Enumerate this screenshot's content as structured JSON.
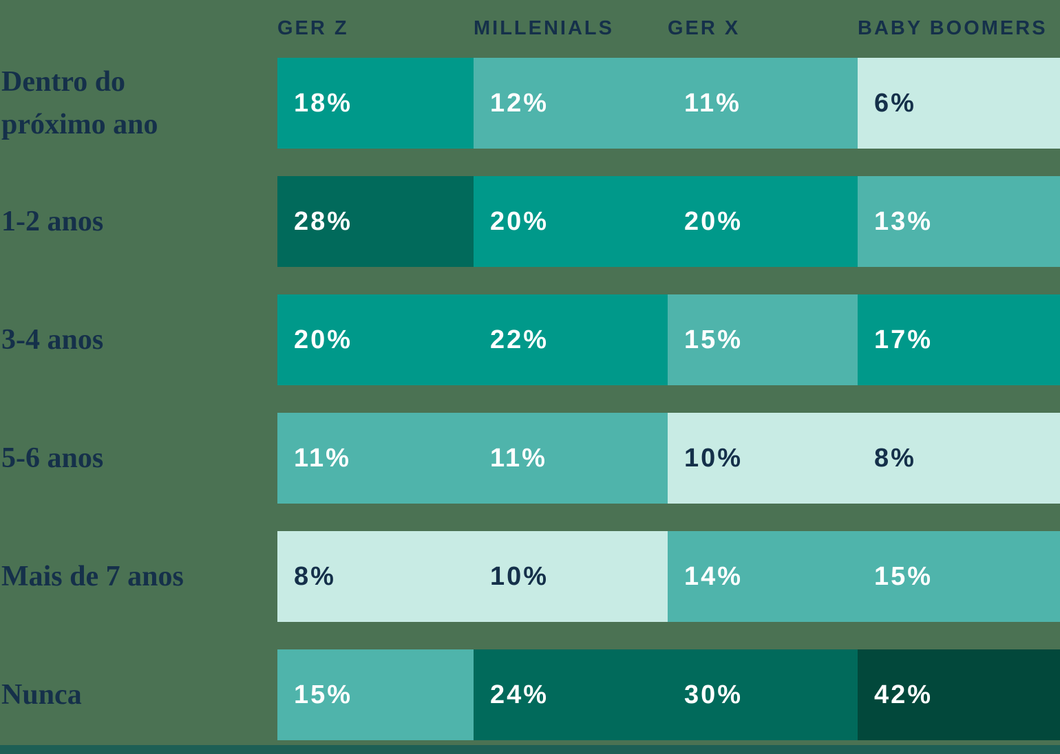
{
  "chart_data": {
    "type": "heatmap",
    "title": "",
    "unit": "%",
    "columns": [
      "GER Z",
      "MILLENIALS",
      "GER X",
      "BABY BOOMERS"
    ],
    "rows": [
      "Dentro do próximo ano",
      "1-2 anos",
      "3-4 anos",
      "5-6 anos",
      "Mais de 7 anos",
      "Nunca"
    ],
    "label_lines": [
      [
        "Dentro do",
        "próximo ano"
      ],
      [
        "1-2 anos"
      ],
      [
        "3-4 anos"
      ],
      [
        "5-6 anos"
      ],
      [
        "Mais de 7 anos"
      ],
      [
        "Nunca"
      ]
    ],
    "values": [
      [
        18,
        12,
        11,
        6
      ],
      [
        28,
        20,
        20,
        13
      ],
      [
        20,
        22,
        15,
        17
      ],
      [
        11,
        11,
        10,
        8
      ],
      [
        8,
        10,
        14,
        15
      ],
      [
        15,
        24,
        30,
        42
      ]
    ],
    "value_labels": [
      [
        "18%",
        "12%",
        "11%",
        "6%"
      ],
      [
        "28%",
        "20%",
        "20%",
        "13%"
      ],
      [
        "20%",
        "22%",
        "15%",
        "17%"
      ],
      [
        "11%",
        "11%",
        "10%",
        "8%"
      ],
      [
        "8%",
        "10%",
        "14%",
        "15%"
      ],
      [
        "15%",
        "24%",
        "30%",
        "42%"
      ]
    ],
    "cell_shades": [
      [
        "mid",
        "light",
        "light",
        "pale"
      ],
      [
        "dark",
        "mid",
        "mid",
        "light"
      ],
      [
        "mid",
        "mid",
        "light",
        "mid"
      ],
      [
        "light",
        "light",
        "pale",
        "pale"
      ],
      [
        "pale",
        "pale",
        "light",
        "light"
      ],
      [
        "light",
        "dark",
        "dark",
        "darkest"
      ]
    ],
    "legend": "none",
    "grid": "off"
  },
  "palette": {
    "darkest": "#02483B",
    "dark": "#016A5B",
    "mid": "#00998A",
    "light": "#4FB4AB",
    "pale": "#C8EBE4",
    "background": "#4B7253",
    "bottom_strip": "#1D5F55",
    "text_dark": "#15304A",
    "text_light": "#FFFFFF"
  }
}
